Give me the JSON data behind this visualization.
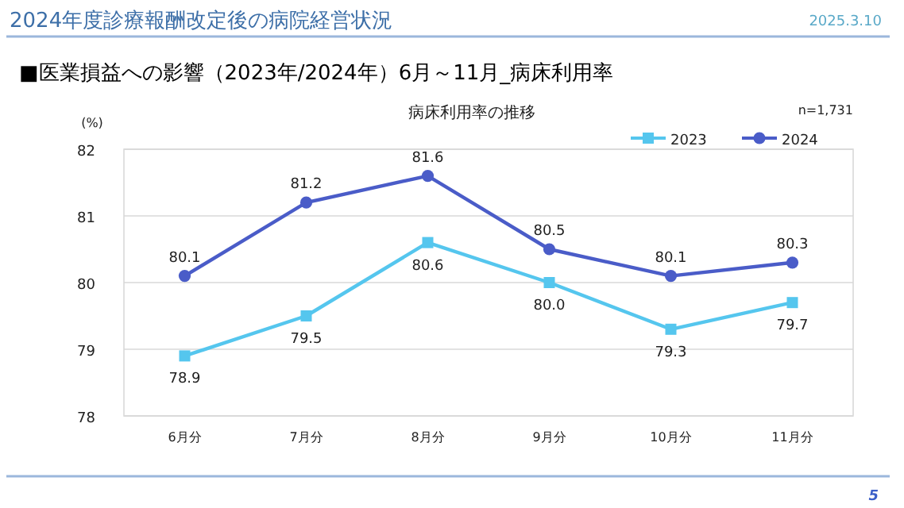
{
  "chart_data": {
    "type": "line",
    "title": "2024年度診療報酬改定後の病院経営状況",
    "subtitle": "■医業損益への影響（2023年/2024年）6月～11月_病床利用率",
    "annotations": [
      "病床利用率の推移",
      "n=1,731",
      "2025.3.10",
      "5"
    ],
    "ylabel": "(%)",
    "categories": [
      "6月分",
      "7月分",
      "8月分",
      "9月分",
      "10月分",
      "11月分"
    ],
    "ylim": [
      78,
      82
    ],
    "yticks": [
      78,
      79,
      80,
      81,
      82
    ],
    "grid": "y",
    "legend": "top right",
    "series": [
      {
        "name": "2023",
        "color": "#55c6ee",
        "marker": "square",
        "values": [
          78.9,
          79.5,
          80.6,
          80.0,
          79.3,
          79.7
        ],
        "value_labels": [
          "78.9",
          "79.5",
          "80.6",
          "80.0",
          "79.3",
          "79.7"
        ]
      },
      {
        "name": "2024",
        "color": "#4a5cc8",
        "marker": "circle",
        "values": [
          80.1,
          81.2,
          81.6,
          80.5,
          80.1,
          80.3
        ],
        "value_labels": [
          "80.1",
          "81.2",
          "81.6",
          "80.5",
          "80.1",
          "80.3"
        ]
      }
    ]
  }
}
